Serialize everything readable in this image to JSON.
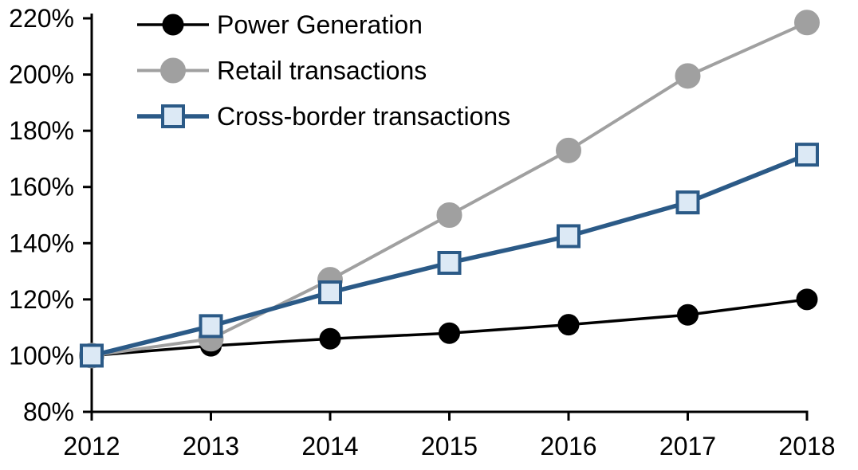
{
  "chart_data": {
    "type": "line",
    "title": "",
    "xlabel": "",
    "ylabel": "",
    "categories": [
      "2012",
      "2013",
      "2014",
      "2015",
      "2016",
      "2017",
      "2018"
    ],
    "series": [
      {
        "name": "Power Generation",
        "marker": "circle",
        "line_color": "#000000",
        "marker_fill": "#000000",
        "marker_stroke": "#000000",
        "values": [
          100,
          103.5,
          106,
          108,
          111,
          114.5,
          120
        ]
      },
      {
        "name": "Retail transactions",
        "marker": "circle",
        "line_color": "#a0a0a0",
        "marker_fill": "#a0a0a0",
        "marker_stroke": "#a0a0a0",
        "values": [
          100,
          106,
          127,
          150,
          173,
          199.5,
          218.5
        ]
      },
      {
        "name": "Cross-border transactions",
        "marker": "square",
        "line_color": "#2b5a87",
        "marker_fill": "#dce9f5",
        "marker_stroke": "#2b5a87",
        "values": [
          100,
          110.5,
          122.5,
          133,
          142.5,
          154.5,
          171.5
        ]
      }
    ],
    "ylim": [
      80,
      220
    ],
    "ytick_step": 20,
    "ytick_labels": [
      "80%",
      "100%",
      "120%",
      "140%",
      "160%",
      "180%",
      "200%",
      "220%"
    ],
    "grid": false,
    "legend_position": "top-left",
    "axis_color": "#000000",
    "text_color": "#000000"
  }
}
